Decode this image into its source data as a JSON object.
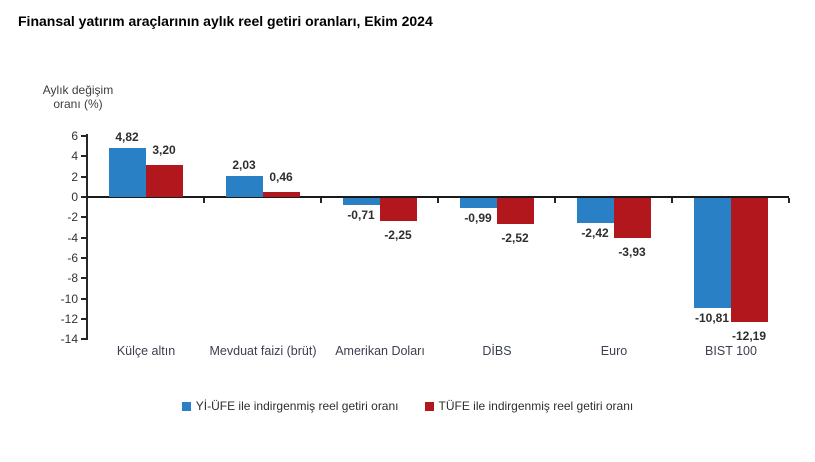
{
  "title": "Finansal yatırım araçlarının aylık reel getiri oranları, Ekim 2024",
  "chart_data": {
    "type": "bar",
    "title": "Finansal yatırım araçlarının aylık reel getiri oranları, Ekim 2024",
    "ylabel": "Aylık değişim\noranı (%)",
    "xlabel": "",
    "categories": [
      "Külçe altın",
      "Mevduat faizi (brüt)",
      "Amerikan Doları",
      "DİBS",
      "Euro",
      "BIST 100"
    ],
    "series": [
      {
        "name": "Yİ-ÜFE ile indirgenmiş reel getiri oranı",
        "color": "#2A80C4",
        "values": [
          4.82,
          2.03,
          -0.71,
          -0.99,
          -2.42,
          -10.81
        ]
      },
      {
        "name": "TÜFE ile indirgenmiş reel getiri oranı",
        "color": "#B3171E",
        "values": [
          3.2,
          0.46,
          -2.25,
          -2.52,
          -3.93,
          -12.19
        ]
      }
    ],
    "ylim": [
      -14,
      6
    ],
    "yticks": [
      6,
      4,
      2,
      0,
      -2,
      -4,
      -6,
      -8,
      -10,
      -12,
      -14
    ],
    "value_label_decimal_separator": ",",
    "grid": false,
    "legend_position": "bottom"
  }
}
